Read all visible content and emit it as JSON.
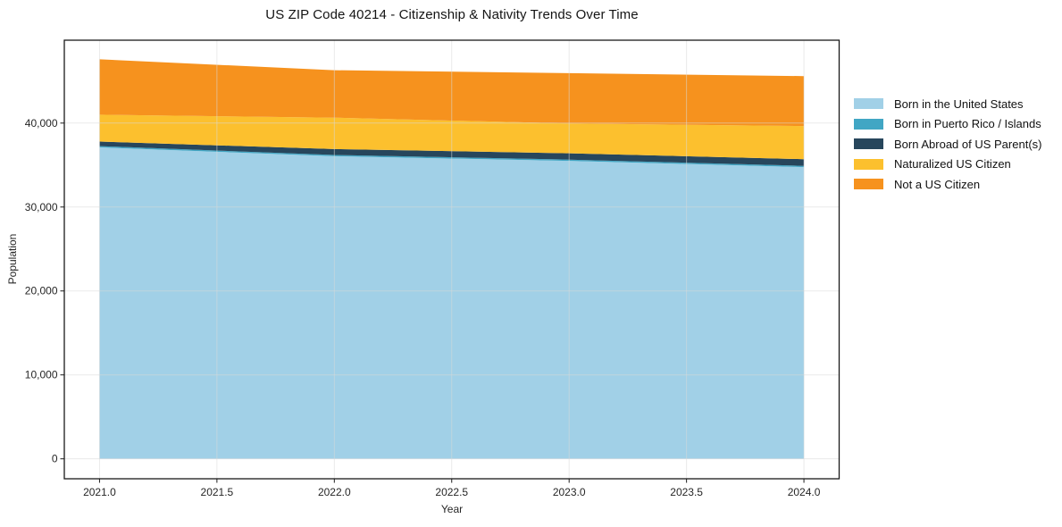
{
  "title": "US ZIP Code 40214 - Citizenship & Nativity Trends Over Time",
  "chart_data": {
    "type": "area",
    "stacked": true,
    "title": "US ZIP Code 40214 - Citizenship & Nativity Trends Over Time",
    "xlabel": "Year",
    "ylabel": "Population",
    "x": [
      2021,
      2022,
      2023,
      2024
    ],
    "series": [
      {
        "name": "Born in the United States",
        "color": "#a1d0e7",
        "values": [
          37100,
          36050,
          35500,
          34750
        ]
      },
      {
        "name": "Born in Puerto Rico / Islands",
        "color": "#41a6c4",
        "values": [
          150,
          150,
          150,
          150
        ]
      },
      {
        "name": "Born Abroad of US Parent(s)",
        "color": "#27465c",
        "values": [
          550,
          700,
          750,
          800
        ]
      },
      {
        "name": "Naturalized US Citizen",
        "color": "#fcc02e",
        "values": [
          3200,
          3750,
          3550,
          3950
        ]
      },
      {
        "name": "Not a US Citizen",
        "color": "#f6921e",
        "values": [
          6600,
          5650,
          6000,
          5950
        ]
      }
    ],
    "stack_totals": [
      47600,
      46300,
      45950,
      45600
    ],
    "xlim": [
      2020.85,
      2024.15
    ],
    "ylim": [
      -2375,
      49875
    ],
    "xticks": {
      "values": [
        2021.0,
        2021.5,
        2022.0,
        2022.5,
        2023.0,
        2023.5,
        2024.0
      ],
      "labels": [
        "2021.0",
        "2021.5",
        "2022.0",
        "2022.5",
        "2023.0",
        "2023.5",
        "2024.0"
      ]
    },
    "yticks": {
      "values": [
        0,
        10000,
        20000,
        30000,
        40000
      ],
      "labels": [
        "0",
        "10,000",
        "20,000",
        "30,000",
        "40,000"
      ]
    },
    "grid": true,
    "legend_position": "right-outside"
  },
  "colors": {
    "axis_frame": "#1a1a1a",
    "gridline": "#d9d9d9",
    "tick_label": "#262626",
    "background": "#ffffff"
  }
}
